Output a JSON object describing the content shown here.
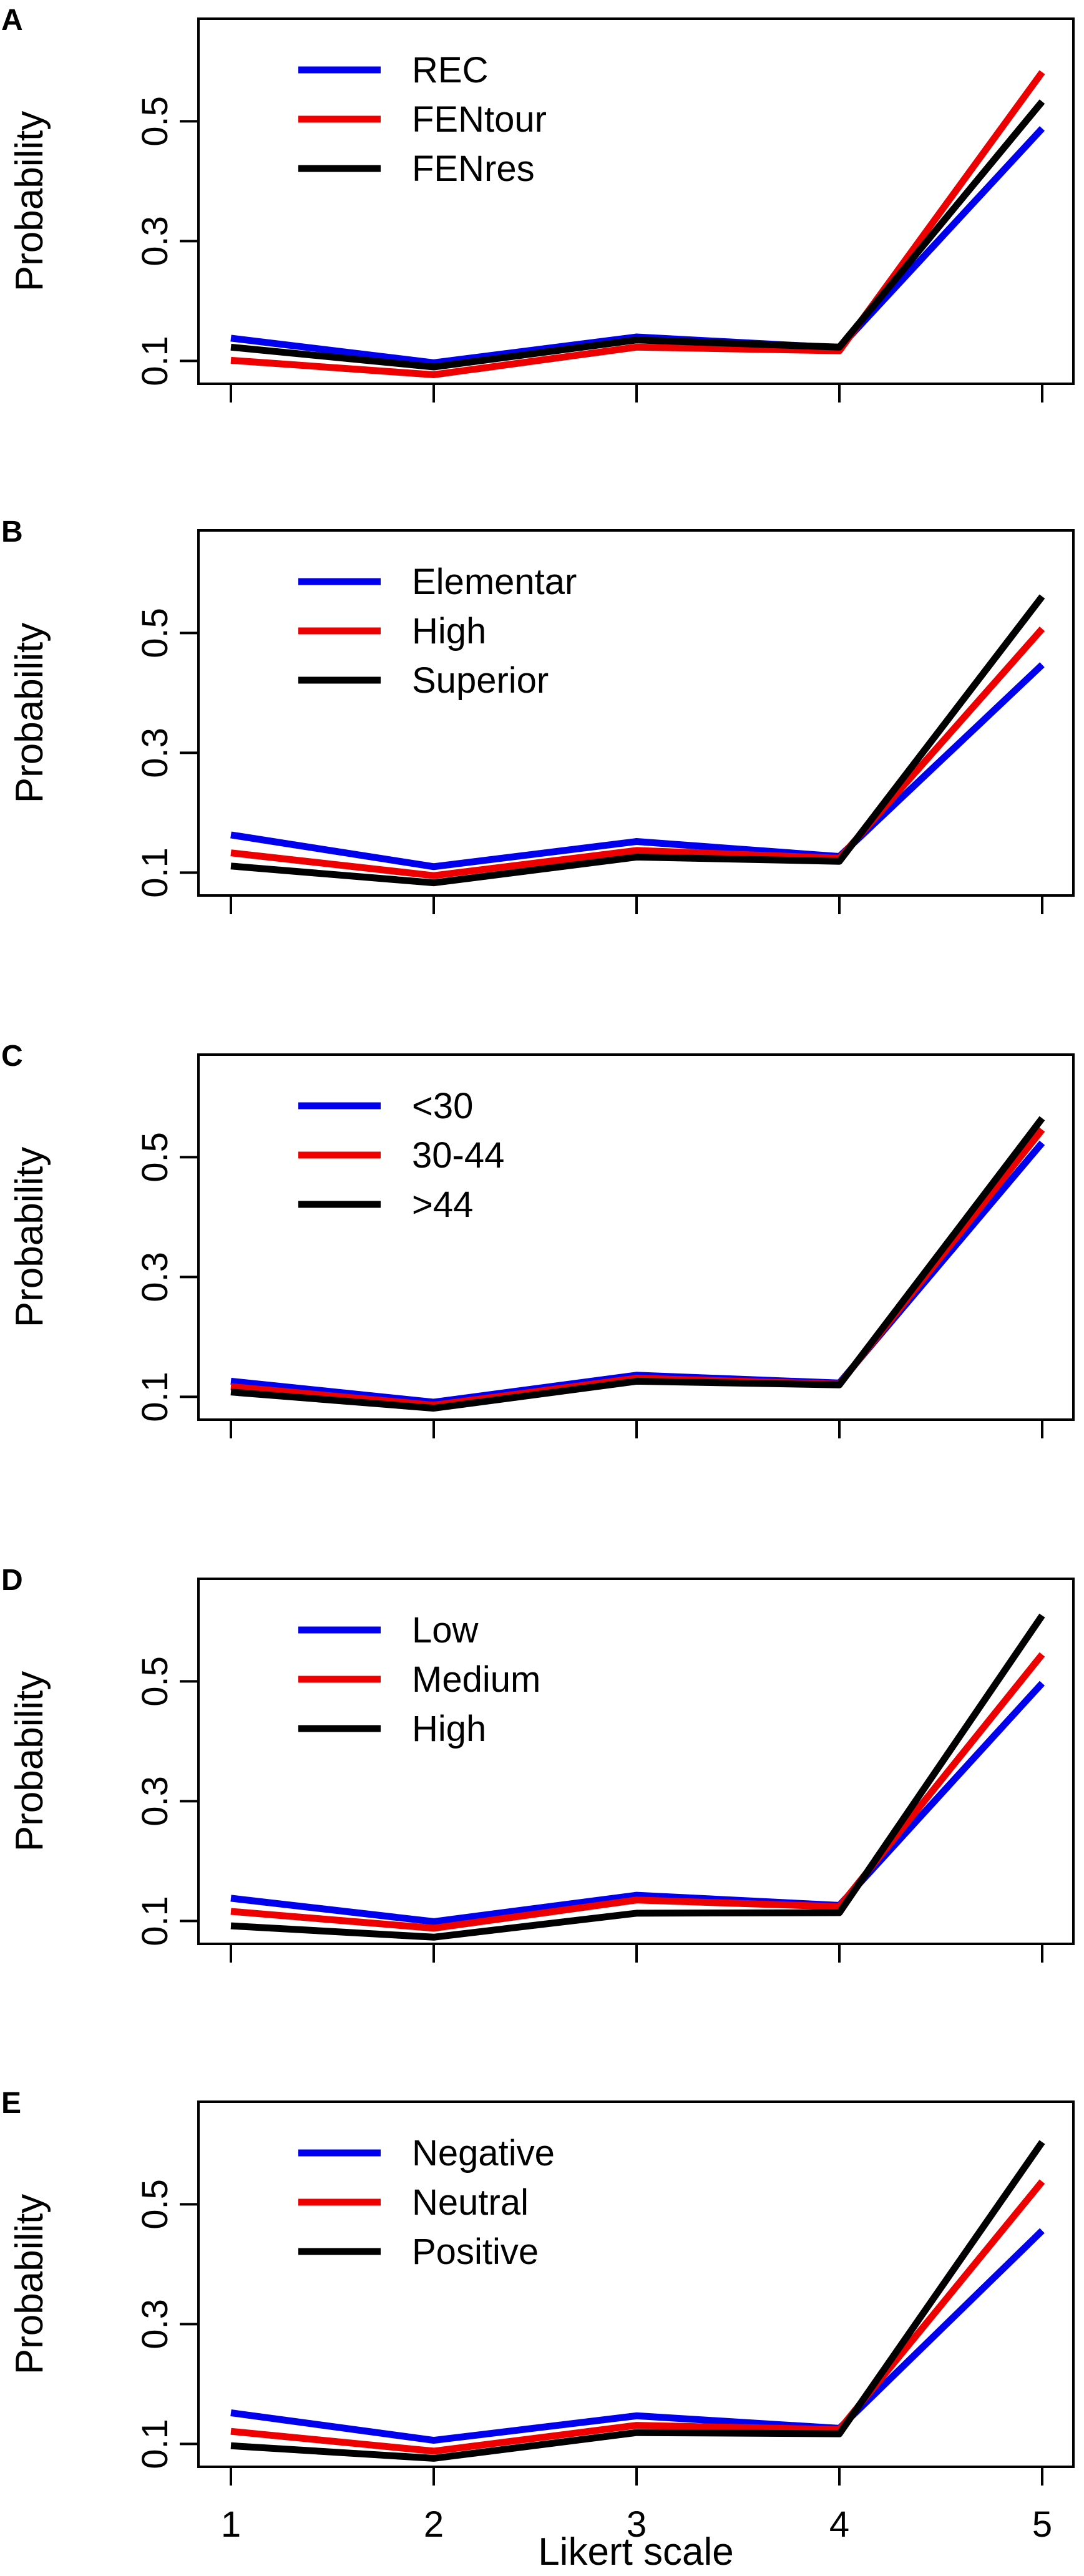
{
  "chart_data": [
    {
      "type": "line",
      "panel": "A",
      "ylabel": "Probability",
      "xlabel": "",
      "x": [
        1,
        2,
        3,
        4,
        5
      ],
      "yticks": [
        "0.1",
        "0.3",
        "0.5"
      ],
      "ylim": [
        0.04,
        0.64
      ],
      "legend_position": "top-left",
      "series": [
        {
          "name": "REC",
          "color": "#0000ee",
          "values": [
            0.138,
            0.097,
            0.14,
            0.122,
            0.488
          ]
        },
        {
          "name": "FENtour",
          "color": "#ee0000",
          "values": [
            0.101,
            0.077,
            0.123,
            0.117,
            0.582
          ]
        },
        {
          "name": "FENres",
          "color": "#000000",
          "values": [
            0.123,
            0.09,
            0.135,
            0.123,
            0.533
          ]
        }
      ]
    },
    {
      "type": "line",
      "panel": "B",
      "ylabel": "Probability",
      "xlabel": "",
      "x": [
        1,
        2,
        3,
        4,
        5
      ],
      "yticks": [
        "0.1",
        "0.3",
        "0.5"
      ],
      "ylim": [
        0.04,
        0.64
      ],
      "legend_position": "top-left",
      "series": [
        {
          "name": "Elementar",
          "color": "#0000ee",
          "values": [
            0.163,
            0.11,
            0.152,
            0.127,
            0.447
          ]
        },
        {
          "name": "High",
          "color": "#ee0000",
          "values": [
            0.133,
            0.095,
            0.137,
            0.124,
            0.507
          ]
        },
        {
          "name": "Superior",
          "color": "#000000",
          "values": [
            0.111,
            0.083,
            0.126,
            0.119,
            0.561
          ]
        }
      ]
    },
    {
      "type": "line",
      "panel": "C",
      "ylabel": "Probability",
      "xlabel": "",
      "x": [
        1,
        2,
        3,
        4,
        5
      ],
      "yticks": [
        "0.1",
        "0.3",
        "0.5"
      ],
      "ylim": [
        0.04,
        0.64
      ],
      "legend_position": "top-left",
      "series": [
        {
          "name": "<30",
          "color": "#0000ee",
          "values": [
            0.126,
            0.091,
            0.136,
            0.123,
            0.524
          ]
        },
        {
          "name": "30-44",
          "color": "#ee0000",
          "values": [
            0.117,
            0.086,
            0.131,
            0.121,
            0.546
          ]
        },
        {
          "name": ">44",
          "color": "#000000",
          "values": [
            0.108,
            0.081,
            0.126,
            0.12,
            0.565
          ]
        }
      ]
    },
    {
      "type": "line",
      "panel": "D",
      "ylabel": "Probability",
      "xlabel": "",
      "x": [
        1,
        2,
        3,
        4,
        5
      ],
      "yticks": [
        "0.1",
        "0.3",
        "0.5"
      ],
      "ylim": [
        0.04,
        0.64
      ],
      "legend_position": "top-left",
      "series": [
        {
          "name": "Low",
          "color": "#0000ee",
          "values": [
            0.138,
            0.099,
            0.143,
            0.126,
            0.497
          ]
        },
        {
          "name": "Medium",
          "color": "#ee0000",
          "values": [
            0.116,
            0.088,
            0.135,
            0.124,
            0.545
          ]
        },
        {
          "name": "High",
          "color": "#000000",
          "values": [
            0.092,
            0.073,
            0.113,
            0.114,
            0.61
          ]
        }
      ]
    },
    {
      "type": "line",
      "panel": "E",
      "ylabel": "Probability",
      "xlabel": "Likert scale",
      "x": [
        1,
        2,
        3,
        4,
        5
      ],
      "xticks": [
        "1",
        "2",
        "3",
        "4",
        "5"
      ],
      "yticks": [
        "0.1",
        "0.3",
        "0.5"
      ],
      "ylim": [
        0.04,
        0.64
      ],
      "legend_position": "top-left",
      "series": [
        {
          "name": "Negative",
          "color": "#0000ee",
          "values": [
            0.152,
            0.106,
            0.147,
            0.126,
            0.456
          ]
        },
        {
          "name": "Neutral",
          "color": "#ee0000",
          "values": [
            0.121,
            0.088,
            0.131,
            0.124,
            0.538
          ]
        },
        {
          "name": "Positive",
          "color": "#000000",
          "values": [
            0.097,
            0.076,
            0.119,
            0.117,
            0.604
          ]
        }
      ]
    }
  ]
}
